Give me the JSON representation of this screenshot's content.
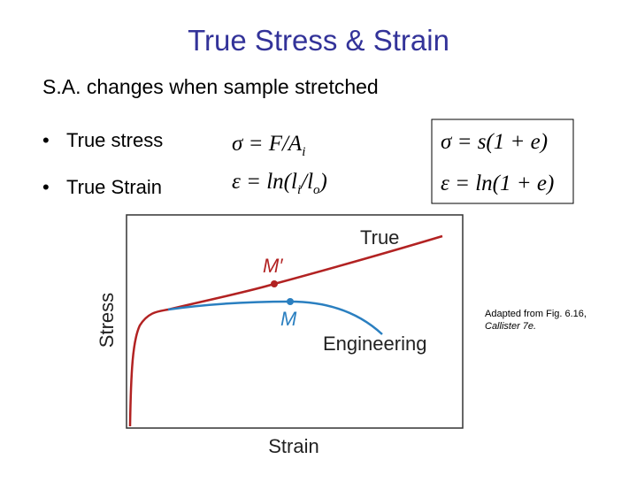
{
  "header": {
    "title": "True Stress & Strain",
    "subtitle": "S.A. changes when sample stretched"
  },
  "bullets": [
    "True stress",
    "True Strain"
  ],
  "formulas": {
    "true_stress": {
      "main": "σ = F/A",
      "sub": "i"
    },
    "true_strain": {
      "main": "ε = ln(l",
      "sub1": "i",
      "mid": "/l",
      "sub2": "o",
      "end": ")"
    },
    "stress_relation": "σ = s(1 + e)",
    "strain_relation": "ε = ln(1 + e)"
  },
  "diagram": {
    "x_label": "Strain",
    "y_label": "Stress",
    "true_label": "True",
    "engineering_label": "Engineering",
    "true_point": "M′",
    "engineering_point": "M"
  },
  "citation": {
    "line1": "Adapted from Fig. 6.16,",
    "line2": "Callister 7e."
  }
}
